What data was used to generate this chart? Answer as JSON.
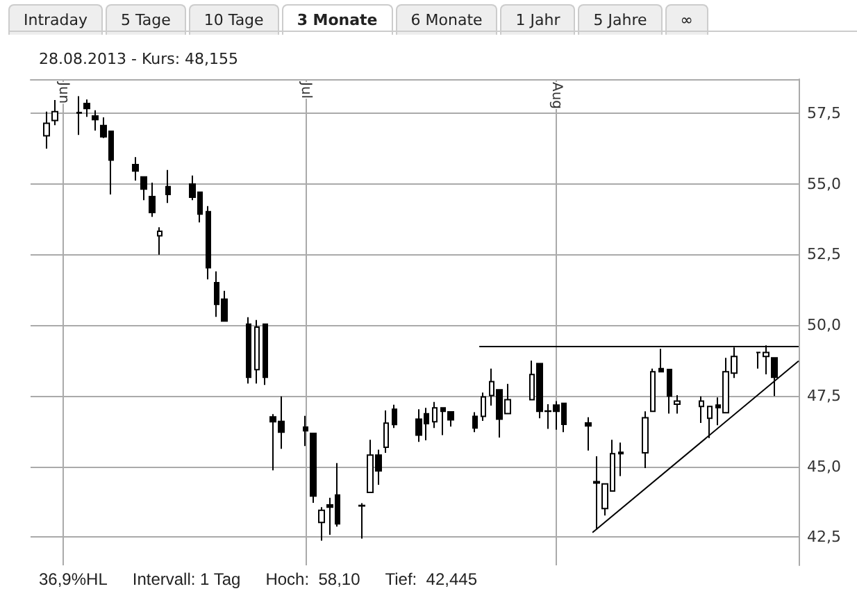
{
  "chart_data": {
    "type": "candlestick",
    "title": "28.08.2013  - Kurs: 48,155",
    "annotations": [
      "Intraday",
      "5 Tage",
      "10 Tage",
      "3 Monate",
      "6 Monate",
      "1 Jahr",
      "5 Jahre",
      "∞",
      "36,9%HL",
      "Intervall: 1 Tag",
      "Hoch:  58,10",
      "Tief:  42,445"
    ],
    "color": "#000000",
    "x": [
      "2013-05-30",
      "2013-05-31",
      "2013-06-03",
      "2013-06-04",
      "2013-06-05",
      "2013-06-06",
      "2013-06-07",
      "2013-06-10",
      "2013-06-11",
      "2013-06-12",
      "2013-06-13",
      "2013-06-14",
      "2013-06-17",
      "2013-06-18",
      "2013-06-19",
      "2013-06-20",
      "2013-06-21",
      "2013-06-24",
      "2013-06-25",
      "2013-06-26",
      "2013-06-27",
      "2013-06-28",
      "2013-07-01",
      "2013-07-02",
      "2013-07-03",
      "2013-07-04",
      "2013-07-05",
      "2013-07-08",
      "2013-07-09",
      "2013-07-10",
      "2013-07-11",
      "2013-07-12",
      "2013-07-15",
      "2013-07-16",
      "2013-07-17",
      "2013-07-18",
      "2013-07-19",
      "2013-07-22",
      "2013-07-23",
      "2013-07-24",
      "2013-07-25",
      "2013-07-26",
      "2013-07-29",
      "2013-07-30",
      "2013-07-31",
      "2013-08-01",
      "2013-08-02",
      "2013-08-05",
      "2013-08-06",
      "2013-08-07",
      "2013-08-08",
      "2013-08-09",
      "2013-08-12",
      "2013-08-13",
      "2013-08-14",
      "2013-08-15",
      "2013-08-16",
      "2013-08-19",
      "2013-08-20",
      "2013-08-21",
      "2013-08-22",
      "2013-08-23",
      "2013-08-26",
      "2013-08-27",
      "2013-08-28"
    ],
    "ohlc": [
      [
        56.7,
        57.55,
        56.24,
        57.14
      ],
      [
        57.24,
        57.96,
        57.07,
        57.55
      ],
      [
        57.5,
        58.1,
        56.73,
        57.52
      ],
      [
        57.84,
        57.98,
        57.37,
        57.66
      ],
      [
        57.4,
        57.6,
        56.88,
        57.27
      ],
      [
        57.06,
        57.35,
        56.62,
        56.66
      ],
      [
        56.86,
        56.86,
        54.62,
        55.84
      ],
      [
        55.68,
        55.94,
        55.11,
        55.45
      ],
      [
        55.24,
        55.24,
        54.42,
        54.81
      ],
      [
        54.55,
        55.04,
        53.83,
        53.98
      ],
      [
        53.16,
        53.46,
        52.49,
        53.32
      ],
      [
        54.9,
        55.49,
        54.32,
        54.62
      ],
      [
        54.99,
        55.29,
        54.42,
        54.52
      ],
      [
        54.7,
        54.7,
        53.63,
        53.93
      ],
      [
        54.01,
        54.21,
        51.62,
        52.03
      ],
      [
        51.5,
        51.9,
        50.29,
        50.73
      ],
      [
        50.92,
        51.21,
        50.14,
        50.14
      ],
      [
        50.03,
        50.28,
        47.93,
        48.15
      ],
      [
        48.42,
        50.18,
        47.93,
        49.93
      ],
      [
        50.03,
        50.03,
        47.88,
        48.15
      ],
      [
        46.75,
        46.85,
        44.86,
        46.58
      ],
      [
        46.59,
        47.48,
        45.62,
        46.21
      ],
      [
        46.39,
        46.79,
        45.72,
        46.26
      ],
      [
        46.17,
        46.17,
        43.71,
        43.95
      ],
      [
        43.02,
        43.56,
        42.37,
        43.45
      ],
      [
        43.64,
        43.89,
        42.58,
        43.56
      ],
      [
        43.99,
        45.12,
        42.87,
        42.97
      ],
      [
        43.62,
        43.7,
        42.445,
        43.6
      ],
      [
        44.08,
        45.94,
        44.08,
        45.4
      ],
      [
        45.4,
        45.59,
        44.35,
        44.84
      ],
      [
        45.68,
        46.98,
        45.48,
        46.53
      ],
      [
        47.02,
        47.18,
        46.36,
        46.48
      ],
      [
        46.67,
        47.02,
        45.87,
        46.11
      ],
      [
        46.86,
        47.07,
        45.92,
        46.51
      ],
      [
        46.58,
        47.28,
        46.36,
        47.07
      ],
      [
        47.07,
        47.07,
        46.11,
        46.95
      ],
      [
        46.93,
        46.93,
        46.41,
        46.65
      ],
      [
        46.77,
        46.92,
        46.21,
        46.36
      ],
      [
        46.77,
        47.61,
        46.61,
        47.46
      ],
      [
        47.51,
        48.46,
        47.15,
        48.0
      ],
      [
        47.71,
        47.71,
        46.02,
        46.67
      ],
      [
        46.87,
        47.92,
        46.87,
        47.36
      ],
      [
        47.36,
        48.74,
        47.36,
        48.25
      ],
      [
        48.64,
        48.64,
        46.7,
        46.95
      ],
      [
        46.96,
        47.2,
        46.33,
        46.95
      ],
      [
        47.17,
        47.31,
        46.3,
        46.95
      ],
      [
        47.23,
        47.23,
        46.21,
        46.49
      ],
      [
        46.54,
        46.74,
        45.56,
        46.43
      ],
      [
        44.46,
        45.36,
        42.77,
        44.41
      ],
      [
        43.51,
        44.38,
        43.26,
        44.38
      ],
      [
        44.13,
        45.94,
        44.13,
        45.45
      ],
      [
        45.5,
        45.84,
        44.66,
        45.45
      ],
      [
        45.48,
        46.95,
        44.94,
        46.72
      ],
      [
        46.95,
        48.46,
        46.95,
        48.35
      ],
      [
        48.46,
        49.16,
        48.35,
        48.35
      ],
      [
        48.43,
        48.43,
        46.87,
        47.49
      ],
      [
        47.2,
        47.52,
        46.87,
        47.31
      ],
      [
        47.12,
        47.48,
        46.54,
        47.31
      ],
      [
        46.7,
        47.12,
        46.0,
        47.12
      ],
      [
        47.17,
        47.44,
        46.46,
        47.08
      ],
      [
        46.9,
        48.84,
        46.9,
        48.35
      ],
      [
        48.3,
        49.21,
        48.13,
        48.89
      ],
      [
        49.03,
        49.05,
        48.46,
        49.03
      ],
      [
        48.89,
        49.28,
        48.26,
        49.03
      ],
      [
        48.84,
        48.84,
        47.49,
        48.15
      ]
    ],
    "series": [
      {
        "type": "line",
        "color": "#000000",
        "x": [
          "2013-07-22T12:00",
          "2013-08-31"
        ],
        "values": [
          49.24,
          49.24
        ]
      },
      {
        "type": "line",
        "color": "#000000",
        "x": [
          "2013-08-05T12:00",
          "2013-08-31"
        ],
        "values": [
          42.66,
          48.73
        ]
      }
    ],
    "xlim": [
      "2013-05-28",
      "2013-08-31"
    ],
    "xticks": [
      {
        "value": "2013-06-01",
        "label": "Jun"
      },
      {
        "value": "2013-07-01",
        "label": "Jul"
      },
      {
        "value": "2013-08-01",
        "label": "Aug"
      }
    ],
    "ylim": [
      41.5,
      58.7
    ],
    "yticks": [
      {
        "value": 42.5,
        "label": "42,5"
      },
      {
        "value": 45,
        "label": "45,0"
      },
      {
        "value": 47.5,
        "label": "47,5"
      },
      {
        "value": 50,
        "label": "50,0"
      },
      {
        "value": 52.5,
        "label": "52,5"
      },
      {
        "value": 55,
        "label": "55,0"
      },
      {
        "value": 57.5,
        "label": "57,5"
      }
    ],
    "grid": true,
    "marker": "none",
    "line_style": "solid"
  }
}
